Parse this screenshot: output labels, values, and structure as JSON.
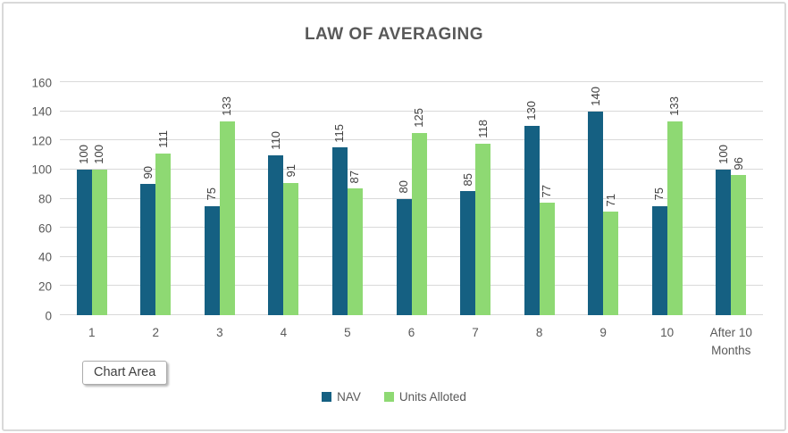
{
  "chart": {
    "title": "LAW OF AVERAGING",
    "tooltip_label": "Chart Area"
  },
  "chart_data": {
    "type": "bar",
    "title": "LAW OF AVERAGING",
    "categories": [
      "1",
      "2",
      "3",
      "4",
      "5",
      "6",
      "7",
      "8",
      "9",
      "10",
      "After 10 Months"
    ],
    "series": [
      {
        "name": "NAV",
        "color": "#156082",
        "values": [
          100,
          90,
          75,
          110,
          115,
          80,
          85,
          130,
          140,
          75,
          100
        ]
      },
      {
        "name": "Units Alloted",
        "color": "#8ED973",
        "values": [
          100,
          111,
          133,
          91,
          87,
          125,
          118,
          77,
          71,
          133,
          96
        ]
      }
    ],
    "xlabel": "",
    "ylabel": "",
    "ylim": [
      0,
      160
    ],
    "y_ticks": [
      0,
      20,
      40,
      60,
      80,
      100,
      120,
      140,
      160
    ],
    "grid": true,
    "legend_position": "bottom",
    "data_labels": "rotated-90-outside-end",
    "colors": {
      "gridline": "#D9D9D9",
      "axis_text": "#595959",
      "data_label_text": "#404040",
      "title_text": "#595959"
    }
  }
}
